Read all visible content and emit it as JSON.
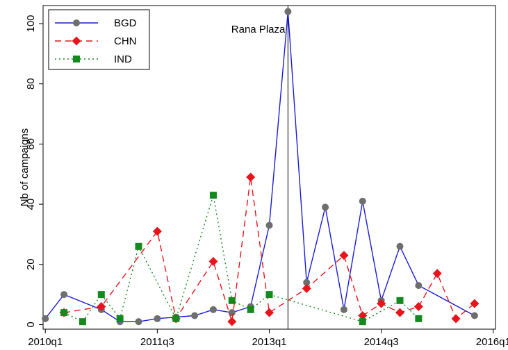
{
  "chart_data": {
    "type": "line",
    "title": "",
    "xlabel": "",
    "ylabel": "Nb of campaigns",
    "xlim": [
      "2010q1",
      "2016q1"
    ],
    "ylim": [
      -1.5,
      106
    ],
    "grid": false,
    "legend_position": "top-left",
    "x_ticks": [
      "2010q1",
      "2011q3",
      "2013q1",
      "2014q3",
      "2016q1"
    ],
    "y_ticks": [
      0,
      20,
      40,
      60,
      80,
      100
    ],
    "annotations": [
      {
        "text": "Rana Plaza",
        "x": "2013q2"
      }
    ],
    "vline_x": "2013q2",
    "series": [
      {
        "name": "BGD",
        "color": "#1a1ad8",
        "marker": "circle",
        "marker_color": "#6e6e6e",
        "dash": "solid",
        "points": [
          [
            "2010q1",
            2
          ],
          [
            "2010q2",
            10
          ],
          [
            "2010q4",
            5
          ],
          [
            "2011q1",
            1
          ],
          [
            "2011q2",
            1
          ],
          [
            "2011q3",
            2
          ],
          [
            "2011q4",
            2.5
          ],
          [
            "2012q1",
            3
          ],
          [
            "2012q2",
            5
          ],
          [
            "2012q3",
            4
          ],
          [
            "2012q4",
            6
          ],
          [
            "2013q1",
            33
          ],
          [
            "2013q2",
            104
          ],
          [
            "2013q3",
            14
          ],
          [
            "2013q4",
            39
          ],
          [
            "2014q1",
            5
          ],
          [
            "2014q2",
            41
          ],
          [
            "2014q3",
            8
          ],
          [
            "2014q4",
            26
          ],
          [
            "2015q1",
            13
          ],
          [
            "2015q4",
            3
          ]
        ]
      },
      {
        "name": "CHN",
        "color": "#e8141b",
        "marker": "diamond",
        "marker_color": "#e8141b",
        "dash": "dashed",
        "points": [
          [
            "2010q2",
            4
          ],
          [
            "2010q4",
            6
          ],
          [
            "2011q3",
            31
          ],
          [
            "2011q4",
            2
          ],
          [
            "2012q2",
            21
          ],
          [
            "2012q3",
            1
          ],
          [
            "2012q4",
            49
          ],
          [
            "2013q1",
            4
          ],
          [
            "2013q3",
            12
          ],
          [
            "2014q1",
            23
          ],
          [
            "2014q2",
            3
          ],
          [
            "2014q3",
            7
          ],
          [
            "2014q4",
            4
          ],
          [
            "2015q1",
            6
          ],
          [
            "2015q2",
            17
          ],
          [
            "2015q3",
            2
          ],
          [
            "2015q4",
            7
          ]
        ]
      },
      {
        "name": "IND",
        "color": "#14891e",
        "marker": "square",
        "marker_color": "#14891e",
        "dash": "dotted",
        "points": [
          [
            "2010q2",
            4
          ],
          [
            "2010q3",
            1
          ],
          [
            "2010q4",
            10
          ],
          [
            "2011q1",
            2
          ],
          [
            "2011q2",
            26
          ],
          [
            "2011q4",
            2
          ],
          [
            "2012q2",
            43
          ],
          [
            "2012q3",
            8
          ],
          [
            "2012q4",
            5
          ],
          [
            "2013q1",
            10
          ],
          [
            "2014q2",
            1
          ],
          [
            "2014q4",
            8
          ],
          [
            "2015q1",
            2
          ]
        ]
      }
    ]
  }
}
